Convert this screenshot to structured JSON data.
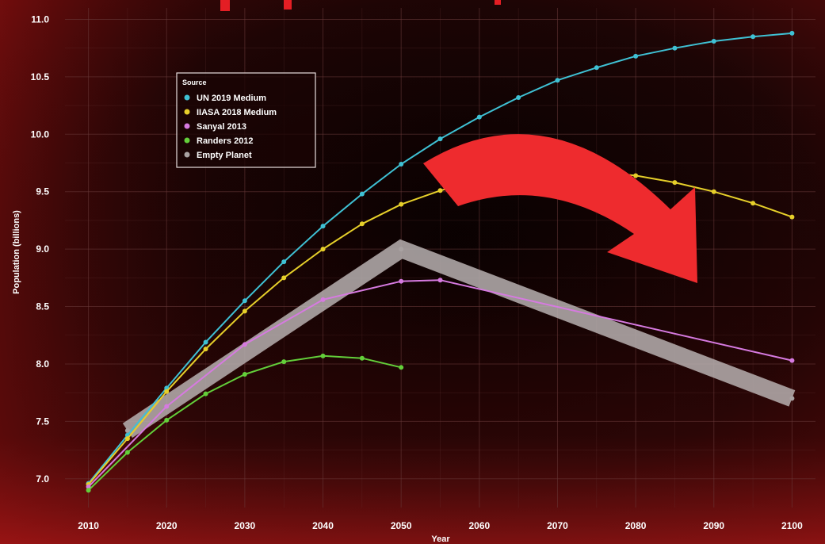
{
  "colors": {
    "background": "#120404",
    "grid": "#6a3a3a",
    "arrow": "#ee2b2e",
    "band": "#b7b0b0"
  },
  "chart_data": {
    "type": "line",
    "xlabel": "Year",
    "ylabel": "Population (billions)",
    "xlim": [
      2007,
      2103
    ],
    "ylim": [
      6.75,
      11.1
    ],
    "x_ticks": [
      2010,
      2020,
      2030,
      2040,
      2050,
      2060,
      2070,
      2080,
      2090,
      2100
    ],
    "y_ticks": [
      7.0,
      7.5,
      8.0,
      8.5,
      9.0,
      9.5,
      10.0,
      10.5,
      11.0
    ],
    "grid": true,
    "legend": {
      "title": "Source",
      "position": "top-left"
    },
    "series": [
      {
        "name": "UN 2019 Medium",
        "color": "#3fc1d4",
        "x": [
          2010,
          2015,
          2020,
          2025,
          2030,
          2035,
          2040,
          2045,
          2050,
          2055,
          2060,
          2065,
          2070,
          2075,
          2080,
          2085,
          2090,
          2095,
          2100
        ],
        "y": [
          6.96,
          7.38,
          7.79,
          8.19,
          8.55,
          8.89,
          9.2,
          9.48,
          9.74,
          9.96,
          10.15,
          10.32,
          10.47,
          10.58,
          10.68,
          10.75,
          10.81,
          10.85,
          10.88
        ]
      },
      {
        "name": "IIASA 2018 Medium",
        "color": "#e6cf2a",
        "x": [
          2010,
          2015,
          2020,
          2025,
          2030,
          2035,
          2040,
          2045,
          2050,
          2055,
          2060,
          2065,
          2070,
          2075,
          2080,
          2085,
          2090,
          2095,
          2100
        ],
        "y": [
          6.95,
          7.35,
          7.76,
          8.13,
          8.46,
          8.75,
          9.0,
          9.22,
          9.39,
          9.51,
          9.6,
          9.65,
          9.67,
          9.67,
          9.64,
          9.58,
          9.5,
          9.4,
          9.28
        ]
      },
      {
        "name": "Sanyal 2013",
        "color": "#d67ae0",
        "x": [
          2010,
          2020,
          2030,
          2040,
          2050,
          2055,
          2100
        ],
        "y": [
          6.93,
          7.63,
          8.17,
          8.56,
          8.72,
          8.73,
          8.03
        ]
      },
      {
        "name": "Randers 2012",
        "color": "#63cf3a",
        "x": [
          2010,
          2015,
          2020,
          2025,
          2030,
          2035,
          2040,
          2045,
          2050
        ],
        "y": [
          6.9,
          7.23,
          7.51,
          7.74,
          7.91,
          8.02,
          8.07,
          8.05,
          7.97
        ]
      },
      {
        "name": "Empty Planet",
        "color": "#a9a2a2",
        "x": [
          2015,
          2050,
          2100
        ],
        "y": [
          7.42,
          9.0,
          7.7
        ]
      }
    ]
  }
}
